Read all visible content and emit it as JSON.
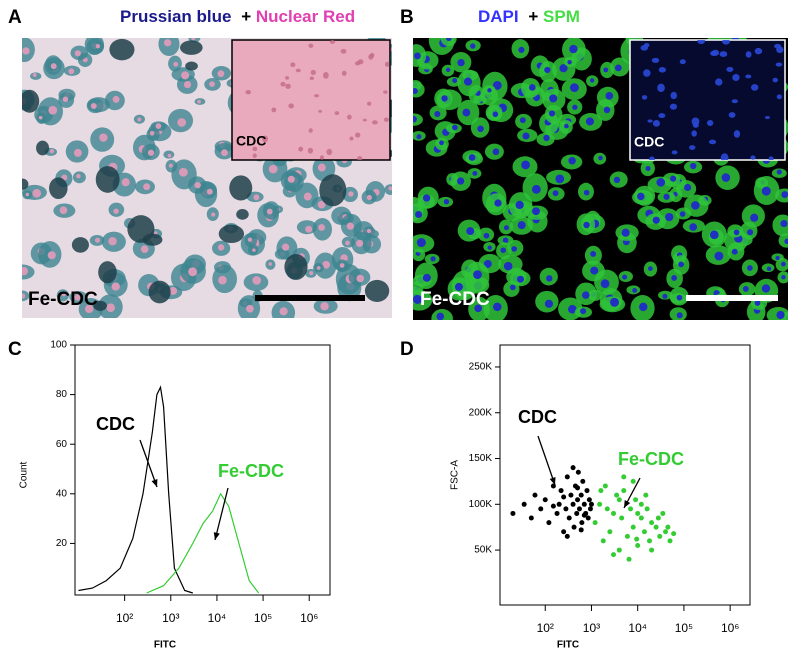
{
  "images": [
    {
      "panel_label": "A",
      "title": [
        {
          "text": "Prussian blue",
          "color": "#1a1a8c"
        },
        {
          "text": "+",
          "color": "#000000"
        },
        {
          "text": "Nuclear Red",
          "color": "#e040b0"
        }
      ],
      "inset_label": "CDC",
      "main_label": "Fe-CDC"
    },
    {
      "panel_label": "B",
      "title": [
        {
          "text": "DAPI",
          "color": "#3333ff"
        },
        {
          "text": "+",
          "color": "#000000"
        },
        {
          "text": "SPM",
          "color": "#44dd44"
        }
      ],
      "inset_label": "CDC",
      "main_label": "Fe-CDC"
    }
  ],
  "chart_data": [
    {
      "type": "line",
      "panel_label": "C",
      "xlabel": "FITC",
      "ylabel": "Count",
      "xscale": "log",
      "xlim": [
        8.4,
        2820000
      ],
      "ylim": [
        -0.8,
        100
      ],
      "xticks": [
        {
          "value": 100,
          "label": "10²"
        },
        {
          "value": 1000,
          "label": "10³"
        },
        {
          "value": 10000,
          "label": "10⁴"
        },
        {
          "value": 100000,
          "label": "10⁵"
        },
        {
          "value": 1000000,
          "label": "10⁶"
        }
      ],
      "yticks": [
        20,
        40,
        60,
        80,
        100
      ],
      "series": [
        {
          "name": "CDC",
          "color": "#000000",
          "x": [
            10,
            20,
            40,
            80,
            150,
            250,
            400,
            500,
            600,
            700,
            900,
            1200,
            2000,
            3000
          ],
          "values": [
            1,
            2,
            5,
            10,
            22,
            40,
            65,
            80,
            83,
            75,
            40,
            10,
            1,
            0
          ]
        },
        {
          "name": "Fe-CDC",
          "color": "#33cc33",
          "x": [
            300,
            700,
            1500,
            3000,
            5000,
            8000,
            12000,
            18000,
            30000,
            50000,
            80000
          ],
          "values": [
            0,
            3,
            10,
            20,
            28,
            33,
            40,
            35,
            20,
            5,
            0
          ]
        }
      ],
      "annotations": [
        {
          "text": "CDC",
          "color": "#000000"
        },
        {
          "text": "Fe-CDC",
          "color": "#33cc33"
        }
      ]
    },
    {
      "type": "scatter",
      "panel_label": "D",
      "xlabel": "FITC",
      "ylabel": "FSC-A",
      "xscale": "log",
      "xlim": [
        10.5,
        2690000
      ],
      "ylim": [
        -10000,
        274000
      ],
      "xticks": [
        {
          "value": 100,
          "label": "10²"
        },
        {
          "value": 1000,
          "label": "10³"
        },
        {
          "value": 10000,
          "label": "10⁴"
        },
        {
          "value": 100000,
          "label": "10⁵"
        },
        {
          "value": 1000000,
          "label": "10⁶"
        }
      ],
      "yticks": [
        {
          "value": 50000,
          "label": "50K"
        },
        {
          "value": 100000,
          "label": "100K"
        },
        {
          "value": 150000,
          "label": "150K"
        },
        {
          "value": 200000,
          "label": "200K"
        },
        {
          "value": 250000,
          "label": "250K"
        }
      ],
      "series": [
        {
          "name": "CDC",
          "color": "#000000",
          "x": [
            20,
            35,
            50,
            60,
            80,
            100,
            120,
            150,
            180,
            200,
            220,
            250,
            280,
            300,
            330,
            360,
            400,
            420,
            450,
            480,
            500,
            520,
            550,
            600,
            620,
            650,
            700,
            750,
            800,
            850,
            900,
            950,
            1000,
            300,
            400,
            500,
            600,
            700,
            250,
            150
          ],
          "values": [
            90000,
            100000,
            85000,
            110000,
            95000,
            105000,
            80000,
            120000,
            90000,
            100000,
            115000,
            70000,
            95000,
            130000,
            85000,
            110000,
            100000,
            75000,
            120000,
            90000,
            105000,
            135000,
            95000,
            110000,
            80000,
            125000,
            100000,
            90000,
            115000,
            85000,
            105000,
            95000,
            100000,
            65000,
            140000,
            118000,
            72000,
            88000,
            108000,
            98000
          ]
        },
        {
          "name": "Fe-CDC",
          "color": "#33cc33",
          "x": [
            1200,
            1500,
            1800,
            2000,
            2500,
            3000,
            3500,
            4000,
            4500,
            5000,
            6000,
            7000,
            8000,
            9000,
            10000,
            12000,
            14000,
            16000,
            18000,
            20000,
            25000,
            30000,
            35000,
            40000,
            50000,
            3000,
            5000,
            8000,
            12000,
            20000,
            2200,
            6500,
            15000,
            28000,
            45000,
            4000,
            10000,
            9500,
            1600,
            60000
          ],
          "values": [
            80000,
            100000,
            60000,
            120000,
            70000,
            90000,
            110000,
            50000,
            85000,
            130000,
            65000,
            95000,
            75000,
            105000,
            55000,
            85000,
            70000,
            95000,
            60000,
            80000,
            75000,
            65000,
            90000,
            70000,
            60000,
            45000,
            115000,
            125000,
            100000,
            50000,
            95000,
            40000,
            110000,
            85000,
            75000,
            105000,
            90000,
            62000,
            115000,
            68000
          ]
        }
      ],
      "annotations": [
        {
          "text": "CDC",
          "color": "#000000"
        },
        {
          "text": "Fe-CDC",
          "color": "#33cc33"
        }
      ]
    }
  ]
}
